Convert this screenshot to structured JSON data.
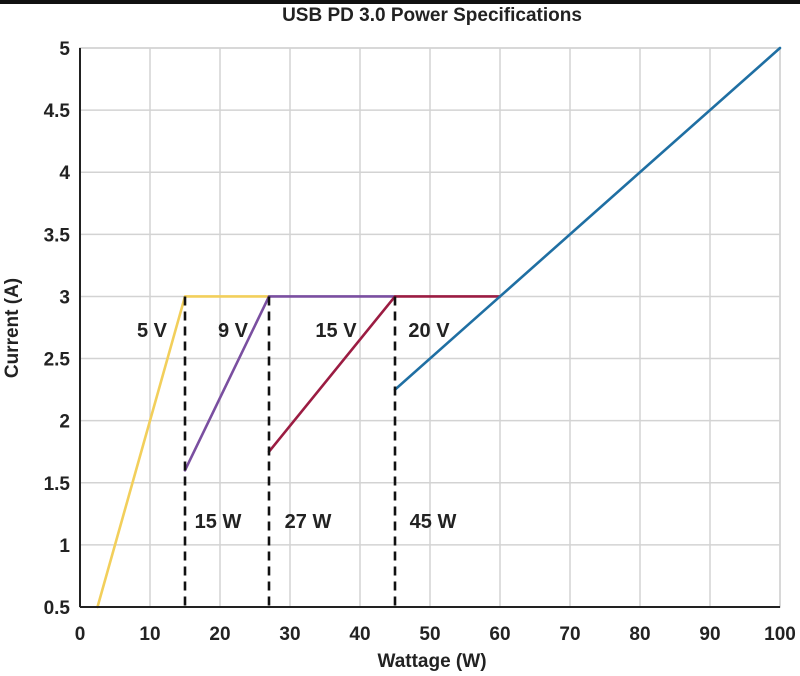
{
  "chart_data": {
    "type": "line",
    "title": "USB PD 3.0 Power Specifications",
    "xlabel": "Wattage (W)",
    "ylabel": "Current (A)",
    "xlim": [
      0,
      100
    ],
    "ylim": [
      0.5,
      5
    ],
    "xticks": [
      0,
      10,
      20,
      30,
      40,
      50,
      60,
      70,
      80,
      90,
      100
    ],
    "yticks": [
      0.5,
      1,
      1.5,
      2,
      2.5,
      3,
      3.5,
      4,
      4.5,
      5
    ],
    "grid": true,
    "series": [
      {
        "label": "5 V",
        "color": "#f2cf5b",
        "x": [
          2.5,
          15,
          27
        ],
        "y": [
          0.5,
          3,
          3
        ]
      },
      {
        "label": "9 V",
        "color": "#7a4fa0",
        "x": [
          15,
          27,
          45
        ],
        "y": [
          1.6,
          3,
          3
        ]
      },
      {
        "label": "15 V",
        "color": "#9b1c42",
        "x": [
          27,
          45,
          60
        ],
        "y": [
          1.75,
          3,
          3
        ]
      },
      {
        "label": "20 V",
        "color": "#1f6fa3",
        "x": [
          45,
          60,
          100
        ],
        "y": [
          2.25,
          3,
          5
        ]
      }
    ],
    "thresholds": [
      {
        "label": "15 W",
        "x": 15,
        "y": [
          0.5,
          3
        ]
      },
      {
        "label": "27 W",
        "x": 27,
        "y": [
          0.5,
          3
        ]
      },
      {
        "label": "45 W",
        "x": 45,
        "y": [
          0.5,
          3
        ]
      }
    ]
  }
}
